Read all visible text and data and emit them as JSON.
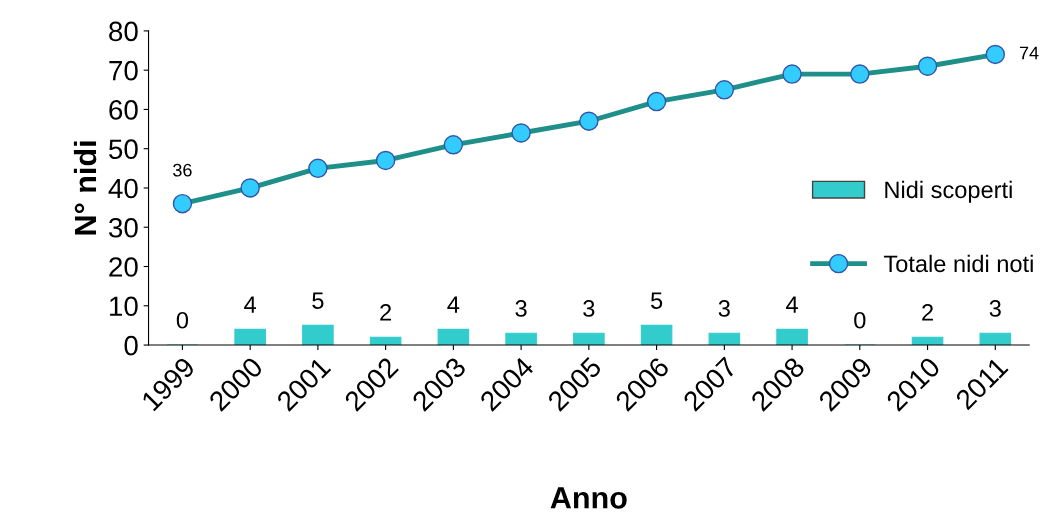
{
  "chart_data": {
    "type": "bar",
    "xlabel": "Anno",
    "ylabel": "N° nidi",
    "categories": [
      "1999",
      "2000",
      "2001",
      "2002",
      "2003",
      "2004",
      "2005",
      "2006",
      "2007",
      "2008",
      "2009",
      "2010",
      "2011"
    ],
    "series": [
      {
        "name": "Nidi scoperti",
        "color": "#33cccc",
        "values": [
          0,
          4,
          5,
          2,
          4,
          3,
          3,
          5,
          3,
          4,
          0,
          2,
          3
        ],
        "value_labels": [
          "0",
          "4",
          "5",
          "2",
          "4",
          "3",
          "3",
          "5",
          "3",
          "4",
          "0",
          "2",
          "3"
        ]
      },
      {
        "name": "Totale nidi noti",
        "type": "line",
        "color": "#1f8f8a",
        "marker": "circle",
        "values": [
          36,
          40,
          45,
          47,
          51,
          54,
          57,
          62,
          65,
          69,
          69,
          71,
          74
        ],
        "value_labels": [
          "36",
          null,
          null,
          null,
          null,
          null,
          null,
          null,
          null,
          null,
          null,
          null,
          "74"
        ]
      }
    ],
    "ylim": [
      0,
      80
    ],
    "yticks": [
      0,
      10,
      20,
      30,
      40,
      50,
      60,
      70,
      80
    ],
    "grid": false,
    "legend": "right"
  }
}
